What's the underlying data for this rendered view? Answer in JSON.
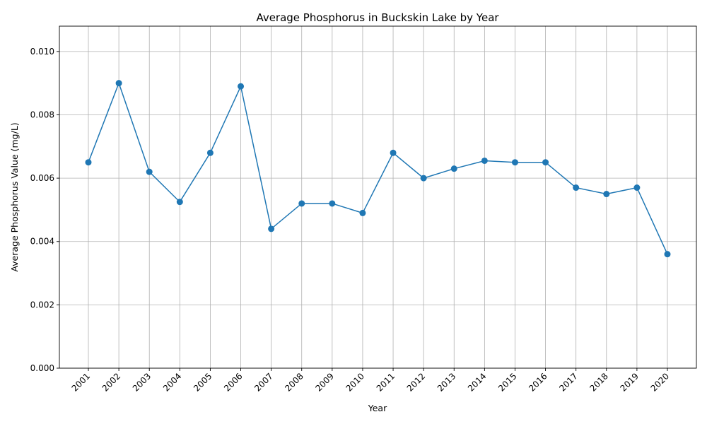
{
  "chart_data": {
    "type": "line",
    "title": "Average Phosphorus in Buckskin Lake by Year",
    "xlabel": "Year",
    "ylabel": "Average Phosphorus Value (mg/L)",
    "x": [
      "2001",
      "2002",
      "2003",
      "2004",
      "2005",
      "2006",
      "2007",
      "2008",
      "2009",
      "2010",
      "2011",
      "2012",
      "2013",
      "2014",
      "2015",
      "2016",
      "2017",
      "2018",
      "2019",
      "2020"
    ],
    "series": [
      {
        "values": [
          0.0065,
          0.009,
          0.0062,
          0.00525,
          0.0068,
          0.0089,
          0.0044,
          0.0052,
          0.0052,
          0.0049,
          0.0068,
          0.006,
          0.0063,
          0.00655,
          0.0065,
          0.0065,
          0.0057,
          0.0055,
          0.0057,
          0.0036
        ],
        "color": "#1f77b4",
        "marker": "circle"
      }
    ],
    "ylim": [
      0,
      0.0108
    ],
    "yticks": [
      "0.000",
      "0.002",
      "0.004",
      "0.006",
      "0.008",
      "0.010"
    ],
    "grid": true
  }
}
